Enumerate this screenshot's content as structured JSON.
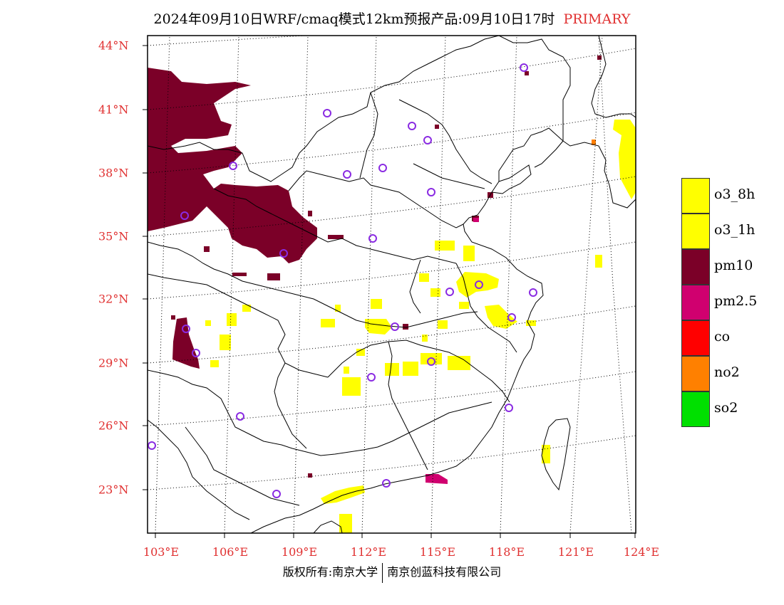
{
  "header": {
    "title": "2024年09月10日WRF/cmaq模式12km预报产品:09月10日17时",
    "badge": "PRIMARY"
  },
  "axes": {
    "lat_labels": [
      "44°N",
      "41°N",
      "38°N",
      "35°N",
      "32°N",
      "29°N",
      "26°N",
      "23°N"
    ],
    "lon_labels": [
      "103°E",
      "106°E",
      "109°E",
      "112°E",
      "115°E",
      "118°E",
      "121°E",
      "124°E"
    ]
  },
  "map": {
    "extent": {
      "lon_min": 102.7,
      "lon_max": 124.0,
      "lat_min": 21.0,
      "lat_max": 44.3
    },
    "station_marker_color": "#8a2be2",
    "layers": {
      "pm10_color": "#7b0028",
      "o3_color": "#ffff00",
      "pm25_color": "#d0006f",
      "no2_color": "#ff8000"
    }
  },
  "legend": {
    "items": [
      {
        "label": "o3_8h",
        "color": "#ffff00"
      },
      {
        "label": "o3_1h",
        "color": "#ffff00"
      },
      {
        "label": "pm10",
        "color": "#7b0028"
      },
      {
        "label": "pm2.5",
        "color": "#d0006f"
      },
      {
        "label": "co",
        "color": "#ff0000"
      },
      {
        "label": "no2",
        "color": "#ff8000"
      },
      {
        "label": "so2",
        "color": "#00e000"
      }
    ]
  },
  "footer": {
    "left": "版权所有:南京大学",
    "right": "南京创蓝科技有限公司"
  }
}
